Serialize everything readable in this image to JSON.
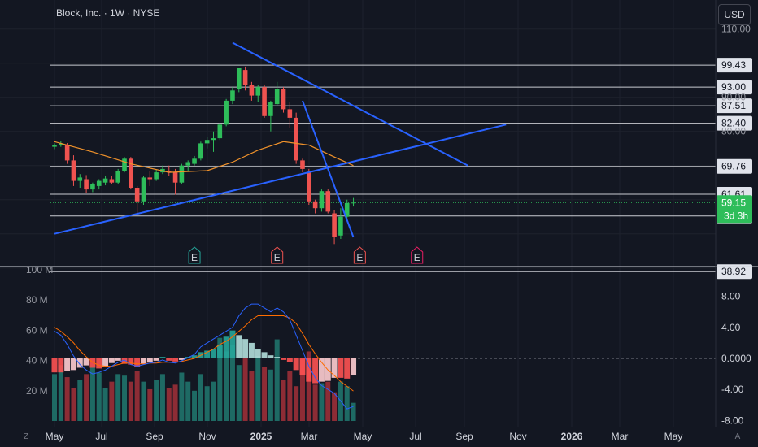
{
  "header": {
    "title": "Block, Inc. · 1W · NYSE",
    "currency_button": "USD"
  },
  "corner_buttons": {
    "left": "Z",
    "right": "A"
  },
  "colors": {
    "background": "#131722",
    "grid": "#1e222d",
    "text": "#d1d4dc",
    "up": "#26a69a",
    "up_bright": "#2ebd5a",
    "down": "#ef5350",
    "trendline": "#2962ff",
    "ma": "#f0922b",
    "macd": "#2962ff",
    "signal": "#ff6d00",
    "vol_up": "#1e6a64",
    "vol_down": "#8d2c35",
    "hist_pos_strong": "#26a69a",
    "hist_pos_weak": "#b2dfdb",
    "hist_neg_strong": "#ff5252",
    "hist_neg_weak": "#ffcdd2"
  },
  "chart_data": [
    {
      "type": "candlestick",
      "x_ticks": [
        "May",
        "Jul",
        "Sep",
        "Nov",
        "2025",
        "Mar",
        "May",
        "Jul",
        "Sep",
        "Nov",
        "2026",
        "Mar",
        "May"
      ],
      "y_ticks": [
        110.0,
        99.43,
        93.0,
        90.0,
        87.51,
        82.4,
        80.0,
        69.76,
        61.61,
        59.15,
        55.23,
        38.92
      ],
      "y_tick_labels": [
        "110.00",
        "90.00",
        "80.00"
      ],
      "horizontal_levels": [
        "99.43",
        "93.00",
        "87.51",
        "82.40",
        "69.76",
        "61.61",
        "55.23",
        "38.92"
      ],
      "last_price": {
        "value": "59.15",
        "countdown": "3d 3h"
      },
      "earnings_markers": [
        {
          "label": "E",
          "week": 22,
          "kind": "beat"
        },
        {
          "label": "E",
          "week": 35,
          "kind": "miss"
        },
        {
          "label": "E",
          "week": 48,
          "kind": "miss"
        },
        {
          "label": "E",
          "week": 57,
          "kind": "upcoming"
        }
      ],
      "candles": [
        [
          0,
          75.5,
          76.5,
          74.8,
          76.0
        ],
        [
          1,
          76.0,
          77.2,
          75.5,
          76.5
        ],
        [
          2,
          76.0,
          76.6,
          70.5,
          71.5
        ],
        [
          3,
          71.5,
          73.0,
          64.0,
          65.5
        ],
        [
          4,
          65.5,
          67.5,
          63.5,
          66.5
        ],
        [
          5,
          66.0,
          67.2,
          62.0,
          63.0
        ],
        [
          6,
          63.0,
          65.0,
          62.2,
          64.5
        ],
        [
          7,
          64.0,
          66.0,
          63.0,
          65.5
        ],
        [
          8,
          65.0,
          67.0,
          64.2,
          66.2
        ],
        [
          9,
          66.0,
          67.0,
          64.5,
          65.0
        ],
        [
          10,
          65.0,
          69.0,
          64.5,
          68.5
        ],
        [
          11,
          68.5,
          72.5,
          68.0,
          72.0
        ],
        [
          12,
          72.0,
          72.5,
          63.0,
          63.5
        ],
        [
          13,
          63.5,
          64.0,
          55.5,
          59.5
        ],
        [
          14,
          59.5,
          67.0,
          58.5,
          66.5
        ],
        [
          15,
          66.5,
          68.5,
          64.0,
          66.0
        ],
        [
          16,
          66.0,
          68.8,
          65.5,
          68.0
        ],
        [
          17,
          68.0,
          70.0,
          67.5,
          69.0
        ],
        [
          18,
          68.5,
          70.0,
          67.0,
          68.0
        ],
        [
          19,
          68.0,
          69.0,
          61.5,
          65.0
        ],
        [
          20,
          65.0,
          70.5,
          64.5,
          70.0
        ],
        [
          21,
          70.0,
          71.5,
          68.5,
          71.0
        ],
        [
          22,
          70.5,
          72.8,
          70.0,
          72.0
        ],
        [
          23,
          72.0,
          77.0,
          71.5,
          76.5
        ],
        [
          24,
          76.5,
          78.5,
          75.0,
          77.5
        ],
        [
          25,
          77.5,
          80.0,
          74.0,
          78.0
        ],
        [
          26,
          78.0,
          82.5,
          77.5,
          82.0
        ],
        [
          27,
          82.0,
          89.5,
          81.5,
          89.0
        ],
        [
          28,
          89.0,
          93.0,
          88.0,
          92.0
        ],
        [
          29,
          92.5,
          98.5,
          91.5,
          98.5
        ],
        [
          30,
          98.0,
          99.0,
          92.0,
          93.5
        ],
        [
          31,
          93.5,
          94.5,
          89.0,
          90.5
        ],
        [
          32,
          90.5,
          93.5,
          88.5,
          93.0
        ],
        [
          33,
          93.0,
          93.5,
          84.0,
          84.5
        ],
        [
          34,
          84.5,
          89.0,
          80.0,
          88.5
        ],
        [
          35,
          88.0,
          94.5,
          87.5,
          92.5
        ],
        [
          36,
          92.5,
          93.0,
          85.5,
          86.5
        ],
        [
          37,
          86.5,
          88.5,
          81.0,
          84.0
        ],
        [
          38,
          84.0,
          85.5,
          70.5,
          71.5
        ],
        [
          39,
          71.5,
          72.0,
          68.0,
          69.0
        ],
        [
          40,
          68.0,
          69.0,
          58.5,
          59.5
        ],
        [
          41,
          59.5,
          60.0,
          56.0,
          57.5
        ],
        [
          42,
          57.5,
          63.0,
          56.5,
          62.5
        ],
        [
          43,
          62.5,
          63.0,
          56.0,
          56.5
        ],
        [
          44,
          56.0,
          57.0,
          47.0,
          49.0
        ],
        [
          45,
          49.5,
          57.5,
          48.5,
          55.0
        ],
        [
          46,
          55.0,
          60.0,
          54.5,
          59.0
        ],
        [
          47,
          59.0,
          60.5,
          58.0,
          59.15
        ]
      ],
      "ma_series": [
        [
          0,
          77.0
        ],
        [
          6,
          74.0
        ],
        [
          12,
          70.5
        ],
        [
          18,
          68.0
        ],
        [
          24,
          68.5
        ],
        [
          28,
          71.0
        ],
        [
          32,
          74.5
        ],
        [
          36,
          77.0
        ],
        [
          40,
          76.0
        ],
        [
          44,
          72.5
        ],
        [
          47,
          70.0
        ]
      ],
      "trendlines": [
        {
          "name": "upper-descending",
          "from": [
            28,
            106.0
          ],
          "to": [
            65,
            70.0
          ]
        },
        {
          "name": "rising-support",
          "from": [
            0,
            50.0
          ],
          "to": [
            71,
            82.0
          ]
        },
        {
          "name": "steep-descending",
          "from": [
            39,
            89.0
          ],
          "to": [
            47,
            49.0
          ]
        }
      ]
    },
    {
      "type": "bar",
      "name": "volume",
      "y_ticks": [
        "100 M",
        "80 M",
        "60 M",
        "40 M",
        "20 M"
      ],
      "values": [
        31,
        37,
        29,
        22,
        27,
        31,
        36,
        32,
        22,
        26,
        31,
        30,
        26,
        33,
        26,
        21,
        27,
        31,
        22,
        24,
        32,
        26,
        20,
        31,
        23,
        26,
        55,
        46,
        50,
        37,
        42,
        33,
        43,
        36,
        34,
        54,
        27,
        33,
        23,
        41,
        46,
        24,
        25,
        26,
        19,
        26,
        23,
        12
      ],
      "up": [
        1,
        1,
        0,
        0,
        1,
        0,
        1,
        1,
        1,
        0,
        1,
        1,
        0,
        0,
        1,
        0,
        1,
        1,
        0,
        0,
        1,
        1,
        1,
        1,
        1,
        1,
        1,
        1,
        1,
        1,
        0,
        0,
        1,
        0,
        1,
        1,
        0,
        0,
        0,
        0,
        0,
        0,
        1,
        0,
        0,
        1,
        1,
        1
      ]
    },
    {
      "type": "line",
      "name": "MACD",
      "y_ticks": [
        "8.00",
        "4.00",
        "0.0000",
        "-4.00",
        "-8.00"
      ],
      "macd": [
        3.5,
        3.0,
        1.8,
        0.3,
        -0.8,
        -1.5,
        -2.0,
        -1.8,
        -1.5,
        -1.0,
        -0.5,
        -0.2,
        -0.8,
        -1.0,
        -0.8,
        -0.6,
        -0.5,
        -0.2,
        -0.5,
        -0.6,
        -0.3,
        0.1,
        0.5,
        1.5,
        2.0,
        2.5,
        3.0,
        3.5,
        4.0,
        5.5,
        6.5,
        7.0,
        7.0,
        6.5,
        6.0,
        6.5,
        6.0,
        5.0,
        3.0,
        1.0,
        -1.0,
        -2.5,
        -3.5,
        -4.0,
        -4.5,
        -5.5,
        -6.5,
        -6.2
      ],
      "signal": [
        4.0,
        3.5,
        2.8,
        2.0,
        1.0,
        0.2,
        -0.5,
        -0.9,
        -1.0,
        -1.0,
        -0.8,
        -0.6,
        -0.6,
        -0.7,
        -0.7,
        -0.6,
        -0.6,
        -0.5,
        -0.5,
        -0.5,
        -0.4,
        -0.2,
        0.0,
        0.4,
        0.8,
        1.2,
        1.8,
        2.2,
        2.8,
        3.5,
        4.2,
        5.0,
        5.5,
        5.5,
        5.5,
        5.5,
        5.5,
        5.2,
        4.5,
        3.2,
        1.8,
        0.6,
        -0.5,
        -1.5,
        -2.2,
        -3.0,
        -3.6,
        -4.2
      ],
      "histogram": [
        -1.8,
        -1.8,
        -1.6,
        -1.5,
        -1.2,
        -0.9,
        -1.2,
        -1.3,
        -1.1,
        -0.6,
        -0.3,
        -0.7,
        -0.8,
        -1.1,
        -0.7,
        -0.5,
        -0.3,
        0.2,
        -0.3,
        -0.4,
        -0.2,
        0.2,
        0.4,
        0.8,
        1.0,
        1.2,
        1.7,
        2.8,
        3.6,
        3.0,
        2.5,
        2.0,
        1.2,
        0.8,
        0.4,
        0.2,
        -0.2,
        -0.5,
        -1.5,
        -2.2,
        -3.0,
        -3.2,
        -3.0,
        -2.9,
        -2.5,
        -2.5,
        -2.6,
        -2.2
      ]
    }
  ]
}
